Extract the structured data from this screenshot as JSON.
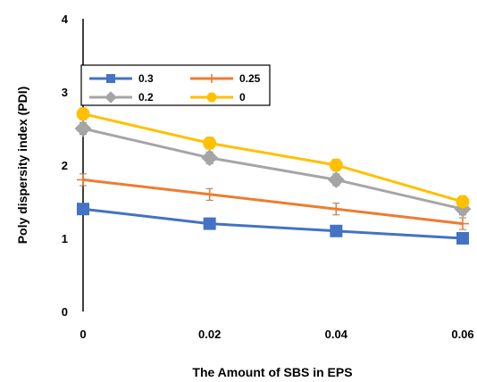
{
  "chart_data": {
    "type": "line",
    "title": "",
    "xlabel": "The Amount of SBS in EPS",
    "ylabel": "Poly dispersity index (PDI)",
    "x": [
      0,
      0.02,
      0.04,
      0.06
    ],
    "x_tick_labels": [
      "0",
      "0.02",
      "0.04",
      "0.06"
    ],
    "xlim": [
      0,
      0.06
    ],
    "ylim": [
      0,
      4
    ],
    "y_ticks": [
      0,
      1,
      2,
      3,
      4
    ],
    "y_tick_labels": [
      "0",
      "1",
      "2",
      "3",
      "4"
    ],
    "grid": false,
    "legend_position": "top-left",
    "series": [
      {
        "name": "0.3",
        "color": "#4472C4",
        "marker": "square",
        "values": [
          1.4,
          1.2,
          1.1,
          1.0
        ],
        "error": [
          0.05,
          0.05,
          0.05,
          0.05
        ]
      },
      {
        "name": "0.25",
        "color": "#ED7D31",
        "marker": "plus",
        "values": [
          1.8,
          1.6,
          1.4,
          1.2
        ],
        "error": [
          0.08,
          0.08,
          0.08,
          0.08
        ]
      },
      {
        "name": "0.2",
        "color": "#A5A5A5",
        "marker": "diamond",
        "values": [
          2.5,
          2.1,
          1.8,
          1.4
        ],
        "error": [
          0.08,
          0.08,
          0.08,
          0.08
        ]
      },
      {
        "name": "0",
        "color": "#FFC000",
        "marker": "circle",
        "values": [
          2.7,
          2.3,
          2.0,
          1.5
        ],
        "error": [
          0.08,
          0.08,
          0.08,
          0.08
        ]
      }
    ]
  }
}
